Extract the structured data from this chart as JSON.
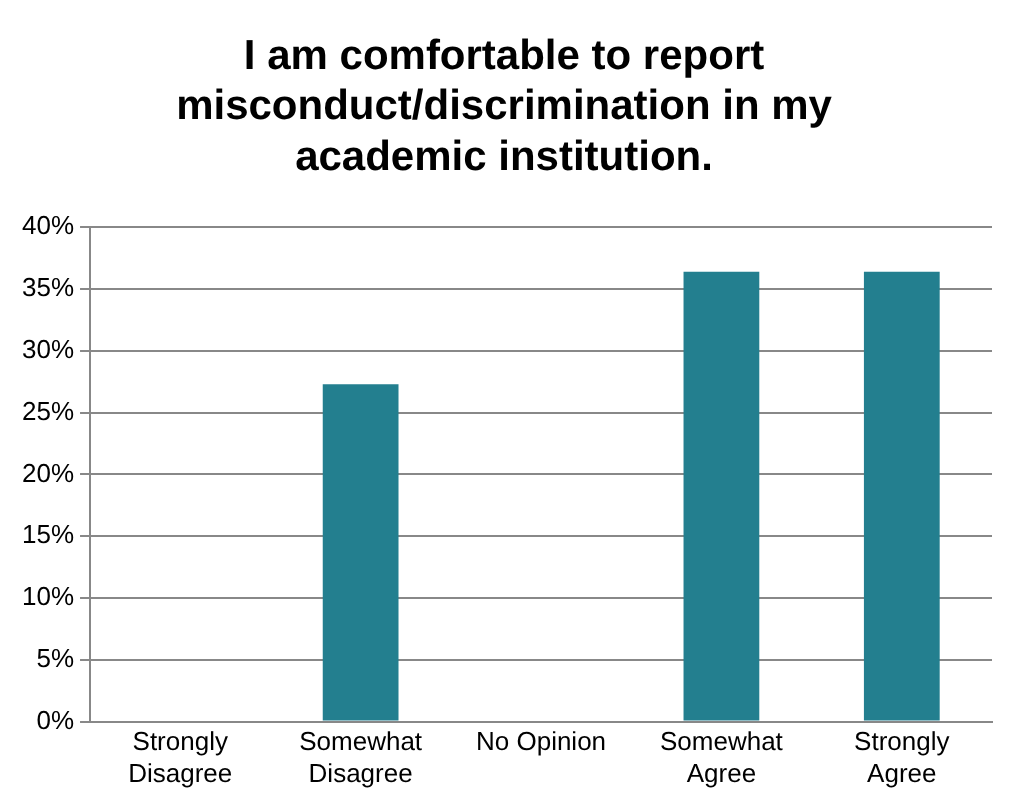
{
  "chart_data": {
    "type": "bar",
    "title": "I am comfortable to report misconduct/discrimination in my academic institution.",
    "categories": [
      "Strongly Disagree",
      "Somewhat Disagree",
      "No Opinion",
      "Somewhat Agree",
      "Strongly Agree"
    ],
    "values": [
      0,
      27.3,
      0,
      36.4,
      36.4
    ],
    "color": "#237f8f",
    "ylim": [
      0,
      40
    ],
    "yticks": [
      {
        "value": 0,
        "label": "0%"
      },
      {
        "value": 5,
        "label": "5%"
      },
      {
        "value": 10,
        "label": "10%"
      },
      {
        "value": 15,
        "label": "15%"
      },
      {
        "value": 20,
        "label": "20%"
      },
      {
        "value": 25,
        "label": "25%"
      },
      {
        "value": 30,
        "label": "30%"
      },
      {
        "value": 35,
        "label": "35%"
      },
      {
        "value": 40,
        "label": "40%"
      }
    ],
    "grid": "y",
    "legend": false
  }
}
